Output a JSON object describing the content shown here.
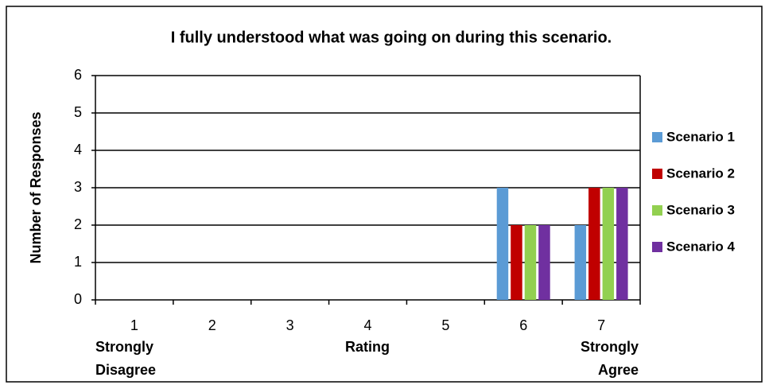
{
  "chart_data": {
    "type": "bar",
    "title": "I fully understood what was going on during this scenario.",
    "y_label": "Number of Responses",
    "x_label": "Rating",
    "annotations": [
      "Strongly Disagree",
      "Strongly Agree"
    ],
    "categories": [
      "1",
      "2",
      "3",
      "4",
      "5",
      "6",
      "7"
    ],
    "series": [
      {
        "name": "Scenario 1",
        "color": "#5b9bd5",
        "values": [
          0,
          0,
          0,
          0,
          0,
          3,
          2
        ]
      },
      {
        "name": "Scenario 2",
        "color": "#c00000",
        "values": [
          0,
          0,
          0,
          0,
          0,
          2,
          3
        ]
      },
      {
        "name": "Scenario 3",
        "color": "#92d050",
        "values": [
          0,
          0,
          0,
          0,
          0,
          2,
          3
        ]
      },
      {
        "name": "Scenario 4",
        "color": "#7030a0",
        "values": [
          0,
          0,
          0,
          0,
          0,
          2,
          3
        ]
      }
    ],
    "ylim": [
      0,
      6
    ],
    "yticks": [
      0,
      1,
      2,
      3,
      4,
      5,
      6
    ],
    "grid": true,
    "legend": "right"
  }
}
